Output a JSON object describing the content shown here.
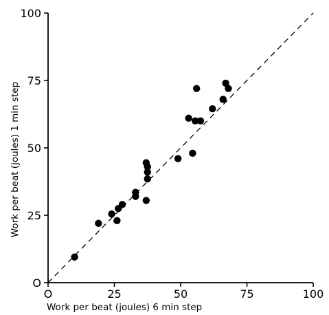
{
  "chart_data": {
    "type": "scatter",
    "title": "",
    "xlabel": "Work per beat (joules) 6 min step",
    "ylabel": "Work per beat (joules) 1 min step",
    "xlim": [
      0,
      100
    ],
    "ylim": [
      0,
      100
    ],
    "x_ticks": [
      {
        "value": 0,
        "label": "O"
      },
      {
        "value": 25,
        "label": "25"
      },
      {
        "value": 50,
        "label": "50"
      },
      {
        "value": 75,
        "label": "75"
      },
      {
        "value": 100,
        "label": "100"
      }
    ],
    "y_ticks": [
      {
        "value": 0,
        "label": "O"
      },
      {
        "value": 25,
        "label": "25"
      },
      {
        "value": 50,
        "label": "50"
      },
      {
        "value": 75,
        "label": "75"
      },
      {
        "value": 100,
        "label": "100"
      }
    ],
    "reference_line": {
      "style": "dashed",
      "from": [
        0,
        0
      ],
      "to": [
        100,
        100
      ]
    },
    "grid": false,
    "marker_color": "#000000",
    "points": [
      {
        "x": 10,
        "y": 9.5
      },
      {
        "x": 19,
        "y": 22
      },
      {
        "x": 24,
        "y": 25.5
      },
      {
        "x": 26,
        "y": 23
      },
      {
        "x": 26.5,
        "y": 27.5
      },
      {
        "x": 28,
        "y": 29
      },
      {
        "x": 33,
        "y": 32
      },
      {
        "x": 33,
        "y": 33.5
      },
      {
        "x": 37,
        "y": 30.5
      },
      {
        "x": 37,
        "y": 44.5
      },
      {
        "x": 37.5,
        "y": 43
      },
      {
        "x": 37.5,
        "y": 41
      },
      {
        "x": 37.5,
        "y": 38.5
      },
      {
        "x": 49,
        "y": 46
      },
      {
        "x": 53,
        "y": 61
      },
      {
        "x": 54.5,
        "y": 48
      },
      {
        "x": 55.5,
        "y": 60
      },
      {
        "x": 56,
        "y": 72
      },
      {
        "x": 57.5,
        "y": 60
      },
      {
        "x": 62,
        "y": 64.5
      },
      {
        "x": 66,
        "y": 68
      },
      {
        "x": 67,
        "y": 74
      },
      {
        "x": 68,
        "y": 72
      }
    ]
  }
}
